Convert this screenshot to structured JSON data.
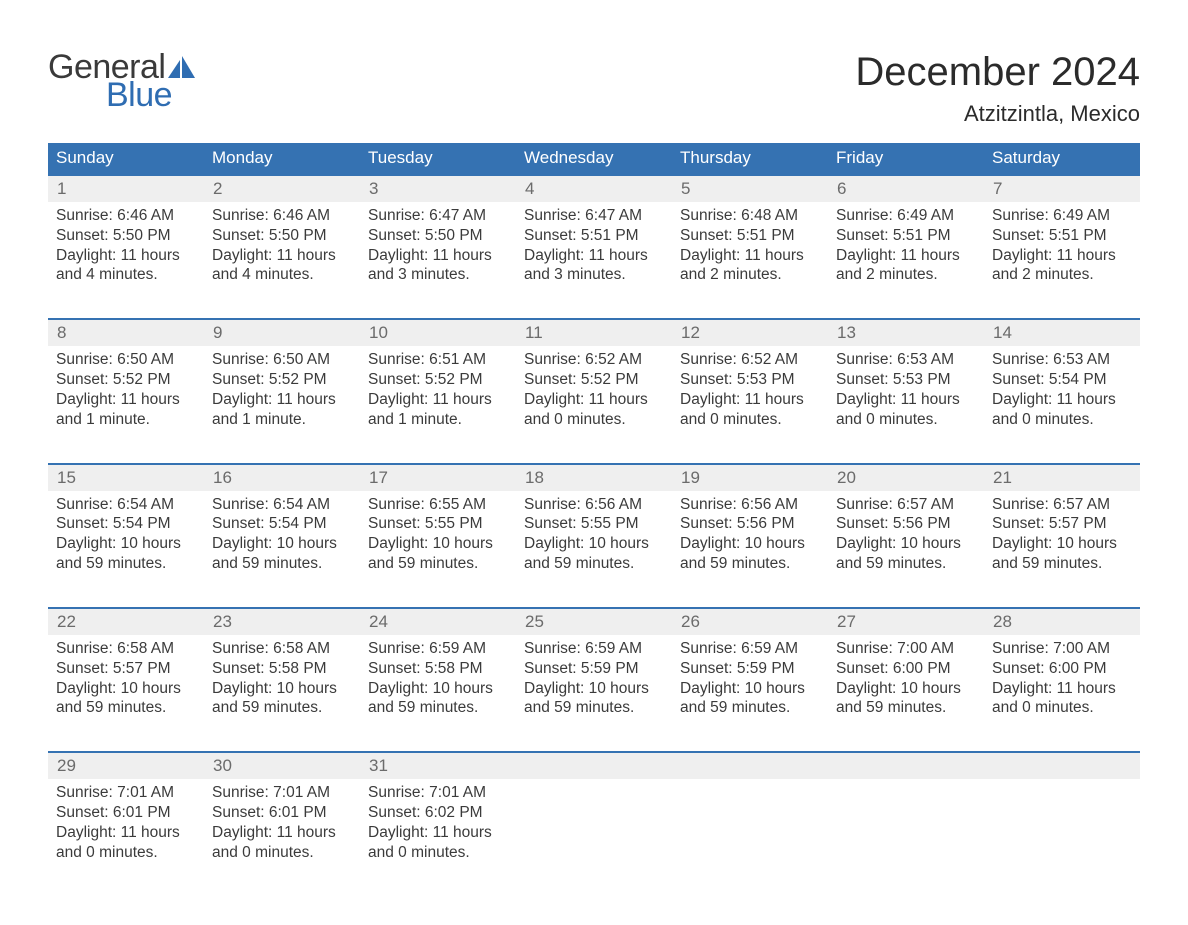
{
  "brand": {
    "word1": "General",
    "word2": "Blue",
    "text_color": "#3a3a3a",
    "accent_color": "#2f6db2"
  },
  "title": "December 2024",
  "location": "Atzitzintla, Mexico",
  "colors": {
    "header_bg": "#3572b2",
    "header_text": "#ffffff",
    "daynum_bg": "#efefef",
    "row_border": "#3572b2",
    "body_text": "#3b3b3b",
    "daynum_text": "#6b6b6b",
    "page_bg": "#ffffff"
  },
  "typography": {
    "title_fontsize": 40,
    "location_fontsize": 22,
    "header_fontsize": 17,
    "daynum_fontsize": 17,
    "detail_fontsize": 15.5,
    "font_family": "Arial"
  },
  "layout": {
    "columns": 7,
    "weeks": 5
  },
  "day_headers": [
    "Sunday",
    "Monday",
    "Tuesday",
    "Wednesday",
    "Thursday",
    "Friday",
    "Saturday"
  ],
  "weeks": [
    [
      {
        "n": "1",
        "sr": "Sunrise: 6:46 AM",
        "ss": "Sunset: 5:50 PM",
        "d1": "Daylight: 11 hours",
        "d2": "and 4 minutes."
      },
      {
        "n": "2",
        "sr": "Sunrise: 6:46 AM",
        "ss": "Sunset: 5:50 PM",
        "d1": "Daylight: 11 hours",
        "d2": "and 4 minutes."
      },
      {
        "n": "3",
        "sr": "Sunrise: 6:47 AM",
        "ss": "Sunset: 5:50 PM",
        "d1": "Daylight: 11 hours",
        "d2": "and 3 minutes."
      },
      {
        "n": "4",
        "sr": "Sunrise: 6:47 AM",
        "ss": "Sunset: 5:51 PM",
        "d1": "Daylight: 11 hours",
        "d2": "and 3 minutes."
      },
      {
        "n": "5",
        "sr": "Sunrise: 6:48 AM",
        "ss": "Sunset: 5:51 PM",
        "d1": "Daylight: 11 hours",
        "d2": "and 2 minutes."
      },
      {
        "n": "6",
        "sr": "Sunrise: 6:49 AM",
        "ss": "Sunset: 5:51 PM",
        "d1": "Daylight: 11 hours",
        "d2": "and 2 minutes."
      },
      {
        "n": "7",
        "sr": "Sunrise: 6:49 AM",
        "ss": "Sunset: 5:51 PM",
        "d1": "Daylight: 11 hours",
        "d2": "and 2 minutes."
      }
    ],
    [
      {
        "n": "8",
        "sr": "Sunrise: 6:50 AM",
        "ss": "Sunset: 5:52 PM",
        "d1": "Daylight: 11 hours",
        "d2": "and 1 minute."
      },
      {
        "n": "9",
        "sr": "Sunrise: 6:50 AM",
        "ss": "Sunset: 5:52 PM",
        "d1": "Daylight: 11 hours",
        "d2": "and 1 minute."
      },
      {
        "n": "10",
        "sr": "Sunrise: 6:51 AM",
        "ss": "Sunset: 5:52 PM",
        "d1": "Daylight: 11 hours",
        "d2": "and 1 minute."
      },
      {
        "n": "11",
        "sr": "Sunrise: 6:52 AM",
        "ss": "Sunset: 5:52 PM",
        "d1": "Daylight: 11 hours",
        "d2": "and 0 minutes."
      },
      {
        "n": "12",
        "sr": "Sunrise: 6:52 AM",
        "ss": "Sunset: 5:53 PM",
        "d1": "Daylight: 11 hours",
        "d2": "and 0 minutes."
      },
      {
        "n": "13",
        "sr": "Sunrise: 6:53 AM",
        "ss": "Sunset: 5:53 PM",
        "d1": "Daylight: 11 hours",
        "d2": "and 0 minutes."
      },
      {
        "n": "14",
        "sr": "Sunrise: 6:53 AM",
        "ss": "Sunset: 5:54 PM",
        "d1": "Daylight: 11 hours",
        "d2": "and 0 minutes."
      }
    ],
    [
      {
        "n": "15",
        "sr": "Sunrise: 6:54 AM",
        "ss": "Sunset: 5:54 PM",
        "d1": "Daylight: 10 hours",
        "d2": "and 59 minutes."
      },
      {
        "n": "16",
        "sr": "Sunrise: 6:54 AM",
        "ss": "Sunset: 5:54 PM",
        "d1": "Daylight: 10 hours",
        "d2": "and 59 minutes."
      },
      {
        "n": "17",
        "sr": "Sunrise: 6:55 AM",
        "ss": "Sunset: 5:55 PM",
        "d1": "Daylight: 10 hours",
        "d2": "and 59 minutes."
      },
      {
        "n": "18",
        "sr": "Sunrise: 6:56 AM",
        "ss": "Sunset: 5:55 PM",
        "d1": "Daylight: 10 hours",
        "d2": "and 59 minutes."
      },
      {
        "n": "19",
        "sr": "Sunrise: 6:56 AM",
        "ss": "Sunset: 5:56 PM",
        "d1": "Daylight: 10 hours",
        "d2": "and 59 minutes."
      },
      {
        "n": "20",
        "sr": "Sunrise: 6:57 AM",
        "ss": "Sunset: 5:56 PM",
        "d1": "Daylight: 10 hours",
        "d2": "and 59 minutes."
      },
      {
        "n": "21",
        "sr": "Sunrise: 6:57 AM",
        "ss": "Sunset: 5:57 PM",
        "d1": "Daylight: 10 hours",
        "d2": "and 59 minutes."
      }
    ],
    [
      {
        "n": "22",
        "sr": "Sunrise: 6:58 AM",
        "ss": "Sunset: 5:57 PM",
        "d1": "Daylight: 10 hours",
        "d2": "and 59 minutes."
      },
      {
        "n": "23",
        "sr": "Sunrise: 6:58 AM",
        "ss": "Sunset: 5:58 PM",
        "d1": "Daylight: 10 hours",
        "d2": "and 59 minutes."
      },
      {
        "n": "24",
        "sr": "Sunrise: 6:59 AM",
        "ss": "Sunset: 5:58 PM",
        "d1": "Daylight: 10 hours",
        "d2": "and 59 minutes."
      },
      {
        "n": "25",
        "sr": "Sunrise: 6:59 AM",
        "ss": "Sunset: 5:59 PM",
        "d1": "Daylight: 10 hours",
        "d2": "and 59 minutes."
      },
      {
        "n": "26",
        "sr": "Sunrise: 6:59 AM",
        "ss": "Sunset: 5:59 PM",
        "d1": "Daylight: 10 hours",
        "d2": "and 59 minutes."
      },
      {
        "n": "27",
        "sr": "Sunrise: 7:00 AM",
        "ss": "Sunset: 6:00 PM",
        "d1": "Daylight: 10 hours",
        "d2": "and 59 minutes."
      },
      {
        "n": "28",
        "sr": "Sunrise: 7:00 AM",
        "ss": "Sunset: 6:00 PM",
        "d1": "Daylight: 11 hours",
        "d2": "and 0 minutes."
      }
    ],
    [
      {
        "n": "29",
        "sr": "Sunrise: 7:01 AM",
        "ss": "Sunset: 6:01 PM",
        "d1": "Daylight: 11 hours",
        "d2": "and 0 minutes."
      },
      {
        "n": "30",
        "sr": "Sunrise: 7:01 AM",
        "ss": "Sunset: 6:01 PM",
        "d1": "Daylight: 11 hours",
        "d2": "and 0 minutes."
      },
      {
        "n": "31",
        "sr": "Sunrise: 7:01 AM",
        "ss": "Sunset: 6:02 PM",
        "d1": "Daylight: 11 hours",
        "d2": "and 0 minutes."
      },
      null,
      null,
      null,
      null
    ]
  ]
}
